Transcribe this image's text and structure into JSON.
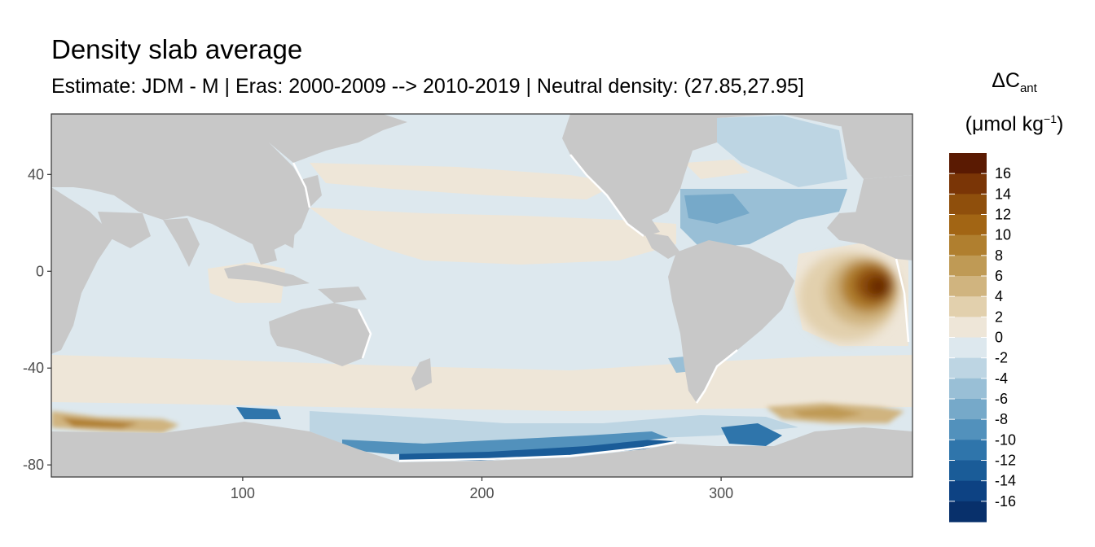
{
  "title": "Density slab average",
  "subtitle": "Estimate: JDM - M | Eras: 2000-2009 --> 2010-2019 | Neutral density: (27.85,27.95]",
  "legend": {
    "symbol": "ΔC",
    "symbol_sub": "ant",
    "unit_open": "(μmol kg",
    "unit_sup": "−1",
    "unit_close": ")",
    "labels": [
      "16",
      "14",
      "12",
      "10",
      "8",
      "6",
      "4",
      "2",
      "0",
      "-2",
      "-4",
      "-6",
      "-8",
      "-10",
      "-12",
      "-14",
      "-16"
    ],
    "colors": [
      "#5a1a02",
      "#7a3506",
      "#8f4f0c",
      "#a26514",
      "#b07f2f",
      "#bf9a55",
      "#d0b47f",
      "#e2d0ad",
      "#eee6d8",
      "#dde8ee",
      "#bdd5e3",
      "#99bfd6",
      "#76a9c9",
      "#5291bc",
      "#2f75ab",
      "#1a5c98",
      "#0d4283",
      "#08306b"
    ]
  },
  "map_data": {
    "type": "heatmap",
    "xlim": [
      20,
      380
    ],
    "ylim": [
      -85,
      65
    ],
    "x_ticks": [
      100,
      200,
      300
    ],
    "y_ticks": [
      40,
      0,
      -40,
      -80
    ],
    "land_color": "#c8c8c8",
    "ocean_base_color": "#dde8ee",
    "features": [
      {
        "name": "south-atlantic-positive-anomaly",
        "center": [
          362,
          -5
        ],
        "value": 16
      },
      {
        "name": "southern-indian-positive-band",
        "lat_range": [
          -65,
          -60
        ],
        "value": 10
      },
      {
        "name": "weddell-positive-band",
        "lat_range": [
          -65,
          -58
        ],
        "value": 8
      },
      {
        "name": "ross-sea-negative-band",
        "lat_range": [
          -78,
          -70
        ],
        "value": -14
      },
      {
        "name": "north-atlantic-negative",
        "center": [
          305,
          30
        ],
        "value": -6
      }
    ]
  }
}
